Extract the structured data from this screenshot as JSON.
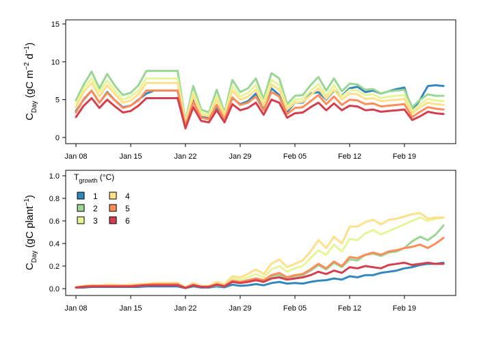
{
  "chart_data": [
    {
      "type": "line",
      "ylabel": {
        "main": "C",
        "sub": "Day",
        "unit_pre": " (gC m",
        "sup1": "−2",
        "mid": " d",
        "sup2": "−1",
        "unit_post": ")"
      },
      "ylim": [
        0,
        15
      ],
      "yticks": [
        0,
        5,
        10,
        15
      ],
      "x_dates": [
        "Jan 08",
        "Jan 09",
        "Jan 10",
        "Jan 11",
        "Jan 12",
        "Jan 13",
        "Jan 14",
        "Jan 15",
        "Jan 16",
        "Jan 17",
        "Jan 18",
        "Jan 19",
        "Jan 20",
        "Jan 21",
        "Jan 22",
        "Jan 23",
        "Jan 24",
        "Jan 25",
        "Jan 26",
        "Jan 27",
        "Jan 28",
        "Jan 29",
        "Jan 30",
        "Jan 31",
        "Feb 01",
        "Feb 02",
        "Feb 03",
        "Feb 04",
        "Feb 05",
        "Feb 06",
        "Feb 07",
        "Feb 08",
        "Feb 09",
        "Feb 10",
        "Feb 11",
        "Feb 12",
        "Feb 13",
        "Feb 14",
        "Feb 15",
        "Feb 16",
        "Feb 17",
        "Feb 18",
        "Feb 19",
        "Feb 20",
        "Feb 21",
        "Feb 22",
        "Feb 23",
        "Feb 24"
      ],
      "xtick_labels": [
        "Jan 08",
        "Jan 15",
        "Jan 22",
        "Jan 29",
        "Feb 05",
        "Feb 12",
        "Feb 19"
      ],
      "grid": false,
      "series": [
        {
          "name": "1",
          "color": "#3288bd",
          "values": [
            3.5,
            5.0,
            6.2,
            4.6,
            6.0,
            4.9,
            4.0,
            4.2,
            5.0,
            5.8,
            6.2,
            6.2,
            6.2,
            6.2,
            1.5,
            5.0,
            2.7,
            2.6,
            4.0,
            2.6,
            5.2,
            4.4,
            4.8,
            5.8,
            3.7,
            6.5,
            5.6,
            3.4,
            4.6,
            4.6,
            5.8,
            6.0,
            5.0,
            6.2,
            5.5,
            6.5,
            6.7,
            6.0,
            6.2,
            5.8,
            6.1,
            6.4,
            6.6,
            3.5,
            5.0,
            6.8,
            6.9,
            6.8
          ]
        },
        {
          "name": "2",
          "color": "#99d594",
          "values": [
            4.9,
            7.0,
            8.7,
            6.5,
            8.4,
            6.8,
            5.6,
            5.9,
            6.9,
            8.8,
            8.8,
            8.8,
            8.8,
            8.8,
            2.2,
            6.8,
            3.7,
            3.3,
            6.3,
            3.3,
            7.6,
            6.0,
            6.5,
            7.8,
            5.1,
            8.5,
            7.8,
            4.4,
            5.5,
            5.6,
            6.9,
            8.0,
            6.2,
            7.8,
            6.1,
            7.1,
            7.0,
            6.3,
            6.4,
            5.8,
            6.1,
            6.2,
            6.3,
            4.0,
            5.0,
            5.7,
            5.5,
            5.5
          ]
        },
        {
          "name": "3",
          "color": "#e6f598",
          "values": [
            4.4,
            6.5,
            7.8,
            6.0,
            7.5,
            6.2,
            5.0,
            5.4,
            6.2,
            7.8,
            7.8,
            7.8,
            7.8,
            7.8,
            2.0,
            6.0,
            3.3,
            3.0,
            5.5,
            3.0,
            6.8,
            5.4,
            5.9,
            6.9,
            4.6,
            7.6,
            6.9,
            4.0,
            5.0,
            5.1,
            6.1,
            7.1,
            5.5,
            6.9,
            5.4,
            6.3,
            6.2,
            5.6,
            5.7,
            5.2,
            5.4,
            5.5,
            5.6,
            3.5,
            4.4,
            5.1,
            4.9,
            4.8
          ]
        },
        {
          "name": "4",
          "color": "#fee08b",
          "values": [
            4.0,
            6.0,
            7.2,
            5.4,
            6.9,
            5.7,
            4.6,
            4.9,
            5.7,
            7.2,
            7.2,
            7.2,
            7.2,
            7.2,
            1.8,
            5.5,
            3.0,
            2.8,
            5.0,
            2.8,
            6.2,
            5.0,
            5.4,
            6.3,
            4.2,
            7.0,
            6.3,
            3.7,
            4.6,
            4.7,
            5.6,
            6.5,
            5.1,
            6.3,
            5.0,
            5.8,
            5.7,
            5.1,
            5.2,
            4.8,
            4.9,
            5.0,
            5.1,
            3.2,
            4.0,
            4.6,
            4.4,
            4.3
          ]
        },
        {
          "name": "5",
          "color": "#fc8d59",
          "values": [
            3.3,
            5.1,
            6.2,
            4.6,
            5.9,
            4.9,
            3.9,
            4.2,
            4.9,
            6.2,
            6.2,
            6.2,
            6.2,
            6.2,
            1.5,
            4.7,
            2.6,
            2.4,
            4.3,
            2.4,
            5.3,
            4.3,
            4.6,
            5.4,
            3.6,
            6.0,
            5.4,
            3.1,
            3.9,
            4.0,
            4.8,
            5.6,
            4.4,
            5.4,
            4.3,
            5.0,
            4.9,
            4.4,
            4.5,
            4.1,
            4.2,
            4.3,
            4.4,
            2.7,
            3.4,
            4.0,
            3.8,
            3.7
          ]
        },
        {
          "name": "6",
          "color": "#d53e4f",
          "values": [
            2.7,
            4.2,
            5.2,
            3.9,
            5.0,
            4.1,
            3.3,
            3.5,
            4.2,
            5.2,
            5.2,
            5.2,
            5.2,
            5.2,
            1.2,
            4.0,
            2.2,
            2.0,
            3.6,
            2.0,
            4.4,
            3.6,
            3.9,
            4.6,
            3.0,
            5.0,
            4.6,
            2.6,
            3.2,
            3.3,
            4.0,
            4.6,
            3.6,
            4.5,
            3.6,
            4.2,
            4.1,
            3.6,
            3.7,
            3.4,
            3.5,
            3.6,
            3.7,
            2.3,
            2.8,
            3.4,
            3.2,
            3.1
          ]
        }
      ]
    },
    {
      "type": "line",
      "ylabel": {
        "main": "C",
        "sub": "Day",
        "unit_pre": " (gC plant",
        "sup1": "−1",
        "unit_post": ")"
      },
      "ylim": [
        0,
        1.0
      ],
      "yticks": [
        0.0,
        0.2,
        0.4,
        0.6,
        0.8,
        1.0
      ],
      "ytick_labels": [
        "0.0",
        "0.2",
        "0.4",
        "0.6",
        "0.8",
        "1.0"
      ],
      "x_dates": [
        "Jan 08",
        "Jan 09",
        "Jan 10",
        "Jan 11",
        "Jan 12",
        "Jan 13",
        "Jan 14",
        "Jan 15",
        "Jan 16",
        "Jan 17",
        "Jan 18",
        "Jan 19",
        "Jan 20",
        "Jan 21",
        "Jan 22",
        "Jan 23",
        "Jan 24",
        "Jan 25",
        "Jan 26",
        "Jan 27",
        "Jan 28",
        "Jan 29",
        "Jan 30",
        "Jan 31",
        "Feb 01",
        "Feb 02",
        "Feb 03",
        "Feb 04",
        "Feb 05",
        "Feb 06",
        "Feb 07",
        "Feb 08",
        "Feb 09",
        "Feb 10",
        "Feb 11",
        "Feb 12",
        "Feb 13",
        "Feb 14",
        "Feb 15",
        "Feb 16",
        "Feb 17",
        "Feb 18",
        "Feb 19",
        "Feb 20",
        "Feb 21",
        "Feb 22",
        "Feb 23",
        "Feb 24"
      ],
      "xtick_labels": [
        "Jan 08",
        "Jan 15",
        "Jan 22",
        "Jan 29",
        "Feb 05",
        "Feb 12",
        "Feb 19"
      ],
      "grid": false,
      "legend": {
        "title_main": "T",
        "title_sub": "growth",
        "title_unit": " (°C)",
        "placement": "top-left",
        "columns": [
          [
            "1",
            "2",
            "3"
          ],
          [
            "4",
            "5",
            "6"
          ]
        ]
      },
      "series": [
        {
          "name": "1",
          "color": "#3288bd",
          "values": [
            0.01,
            0.01,
            0.015,
            0.015,
            0.015,
            0.015,
            0.015,
            0.015,
            0.015,
            0.02,
            0.02,
            0.02,
            0.02,
            0.02,
            0.005,
            0.02,
            0.01,
            0.01,
            0.02,
            0.012,
            0.035,
            0.025,
            0.03,
            0.04,
            0.03,
            0.05,
            0.06,
            0.045,
            0.05,
            0.045,
            0.06,
            0.07,
            0.075,
            0.09,
            0.08,
            0.11,
            0.1,
            0.12,
            0.12,
            0.14,
            0.15,
            0.16,
            0.18,
            0.19,
            0.21,
            0.22,
            0.22,
            0.23
          ]
        },
        {
          "name": "2",
          "color": "#99d594",
          "values": [
            0.015,
            0.02,
            0.025,
            0.025,
            0.025,
            0.025,
            0.02,
            0.025,
            0.025,
            0.03,
            0.035,
            0.035,
            0.035,
            0.035,
            0.008,
            0.03,
            0.015,
            0.015,
            0.03,
            0.02,
            0.06,
            0.05,
            0.06,
            0.08,
            0.06,
            0.11,
            0.12,
            0.09,
            0.11,
            0.12,
            0.16,
            0.21,
            0.17,
            0.23,
            0.19,
            0.26,
            0.25,
            0.3,
            0.31,
            0.29,
            0.32,
            0.33,
            0.36,
            0.42,
            0.46,
            0.43,
            0.48,
            0.56
          ]
        },
        {
          "name": "3",
          "color": "#e6f598",
          "values": [
            0.015,
            0.025,
            0.03,
            0.03,
            0.03,
            0.03,
            0.03,
            0.03,
            0.035,
            0.04,
            0.045,
            0.045,
            0.045,
            0.045,
            0.01,
            0.04,
            0.02,
            0.02,
            0.05,
            0.03,
            0.09,
            0.08,
            0.1,
            0.13,
            0.1,
            0.17,
            0.2,
            0.15,
            0.18,
            0.2,
            0.27,
            0.34,
            0.3,
            0.39,
            0.33,
            0.44,
            0.43,
            0.49,
            0.52,
            0.48,
            0.51,
            0.54,
            0.57,
            0.6,
            0.63,
            0.6,
            0.62,
            0.63
          ]
        },
        {
          "name": "4",
          "color": "#fee08b",
          "values": [
            0.015,
            0.025,
            0.03,
            0.03,
            0.035,
            0.035,
            0.03,
            0.035,
            0.04,
            0.045,
            0.05,
            0.05,
            0.05,
            0.05,
            0.012,
            0.05,
            0.025,
            0.025,
            0.06,
            0.04,
            0.11,
            0.1,
            0.13,
            0.17,
            0.13,
            0.22,
            0.26,
            0.19,
            0.22,
            0.25,
            0.33,
            0.43,
            0.36,
            0.46,
            0.4,
            0.55,
            0.55,
            0.59,
            0.61,
            0.57,
            0.61,
            0.62,
            0.64,
            0.66,
            0.67,
            0.62,
            0.63,
            0.63
          ]
        },
        {
          "name": "5",
          "color": "#fc8d59",
          "values": [
            0.01,
            0.02,
            0.025,
            0.025,
            0.025,
            0.025,
            0.025,
            0.025,
            0.03,
            0.035,
            0.04,
            0.04,
            0.04,
            0.04,
            0.008,
            0.035,
            0.018,
            0.018,
            0.04,
            0.025,
            0.07,
            0.06,
            0.075,
            0.09,
            0.075,
            0.12,
            0.14,
            0.1,
            0.12,
            0.13,
            0.17,
            0.22,
            0.18,
            0.24,
            0.2,
            0.28,
            0.27,
            0.3,
            0.32,
            0.3,
            0.33,
            0.34,
            0.36,
            0.37,
            0.39,
            0.36,
            0.4,
            0.45
          ]
        },
        {
          "name": "6",
          "color": "#d53e4f",
          "values": [
            0.01,
            0.015,
            0.02,
            0.02,
            0.02,
            0.02,
            0.02,
            0.02,
            0.025,
            0.03,
            0.03,
            0.03,
            0.03,
            0.03,
            0.006,
            0.03,
            0.015,
            0.015,
            0.035,
            0.02,
            0.06,
            0.05,
            0.06,
            0.075,
            0.06,
            0.09,
            0.1,
            0.08,
            0.09,
            0.1,
            0.12,
            0.15,
            0.13,
            0.16,
            0.14,
            0.19,
            0.18,
            0.2,
            0.19,
            0.18,
            0.21,
            0.22,
            0.23,
            0.21,
            0.22,
            0.23,
            0.22,
            0.22
          ]
        }
      ]
    }
  ]
}
